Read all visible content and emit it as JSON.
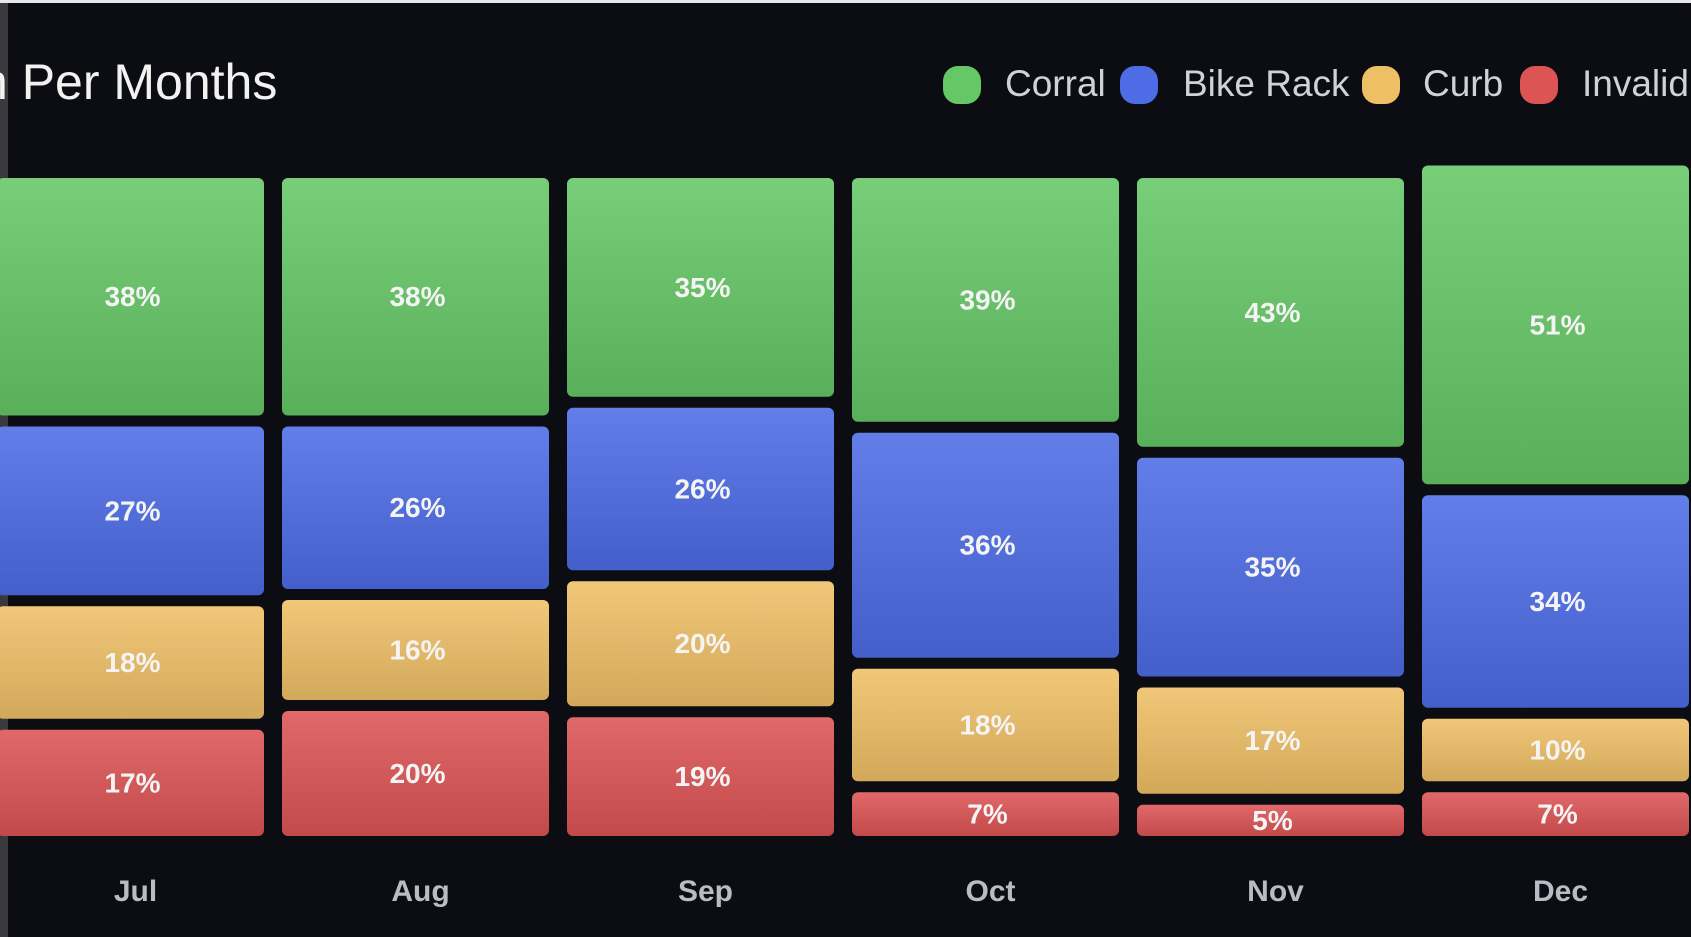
{
  "chart_data": {
    "type": "bar",
    "stacked": true,
    "title": "n Per Months",
    "categories": [
      "Jul",
      "Aug",
      "Sep",
      "Oct",
      "Nov",
      "Dec"
    ],
    "series": [
      {
        "name": "Corral",
        "color": "#66c766",
        "values": [
          38,
          38,
          35,
          39,
          43,
          51
        ],
        "value_labels": [
          "38%",
          "38%",
          "35%",
          "39%",
          "43%",
          "51%"
        ]
      },
      {
        "name": "Bike Rack",
        "color": "#4d6ce6",
        "values": [
          27,
          26,
          26,
          36,
          35,
          34
        ],
        "value_labels": [
          "27%",
          "26%",
          "26%",
          "36%",
          "35%",
          "34%"
        ]
      },
      {
        "name": "Curb",
        "color": "#efbf66",
        "values": [
          18,
          16,
          20,
          18,
          17,
          10
        ],
        "value_labels": [
          "18%",
          "16%",
          "20%",
          "18%",
          "17%",
          "10%"
        ]
      },
      {
        "name": "Invalid",
        "color": "#dd5454",
        "values": [
          17,
          20,
          19,
          7,
          5,
          7
        ],
        "value_labels": [
          "17%",
          "20%",
          "19%",
          "7%",
          "5%",
          "7%"
        ]
      }
    ],
    "ylim": [
      0,
      100
    ],
    "legend": "top-right"
  }
}
